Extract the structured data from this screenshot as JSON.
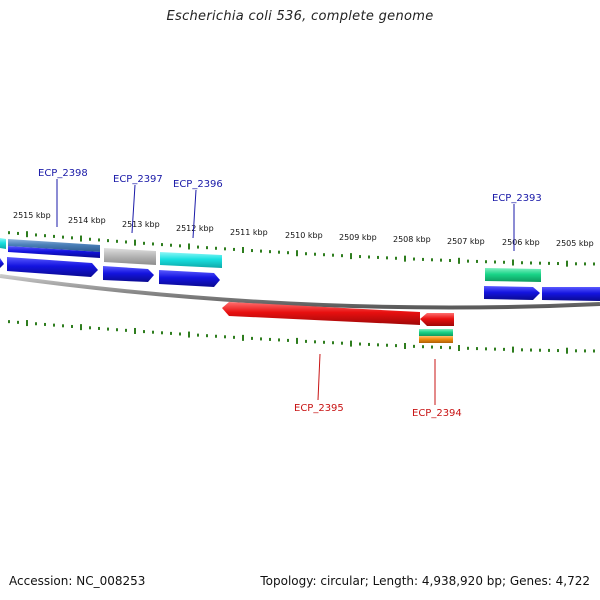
{
  "title": "Escherichia coli 536, complete genome",
  "footer": {
    "accession": "Accession: NC_008253",
    "summary": "Topology: circular; Length: 4,938,920 bp; Genes: 4,722"
  },
  "scale_labels": [
    "2515 kbp",
    "2514 kbp",
    "2513 kbp",
    "2512 kbp",
    "2511 kbp",
    "2510 kbp",
    "2509 kbp",
    "2508 kbp",
    "2507 kbp",
    "2506 kbp",
    "2505 kbp"
  ],
  "gene_labels": {
    "ecp2398": "ECP_2398",
    "ecp2397": "ECP_2397",
    "ecp2396": "ECP_2396",
    "ecp2393": "ECP_2393",
    "ecp2395": "ECP_2395",
    "ecp2394": "ECP_2394"
  },
  "colors": {
    "forward_label": "#1a1aa8",
    "reverse_label": "#c81414",
    "ticks": "#2e7d1e",
    "backbone": "#8a8a8a",
    "cds_blue": "#1414e0",
    "cyan": "#19e0e0",
    "gray": "#b8b8b8",
    "steelblue": "#4a7fb8",
    "green": "#19d488",
    "red": "#e81010",
    "orange": "#f08c10"
  }
}
